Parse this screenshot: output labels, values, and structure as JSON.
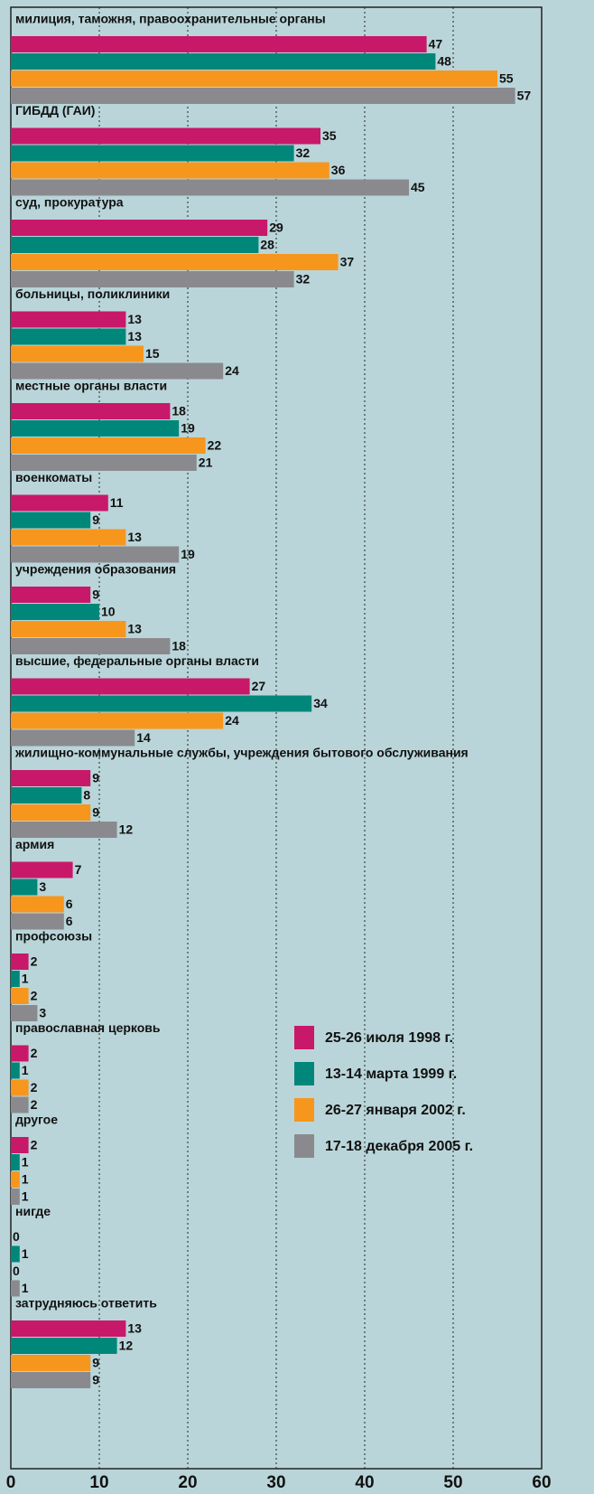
{
  "chart_data": {
    "type": "bar",
    "orientation": "horizontal",
    "categories": [
      "милиция, таможня, правоохранительные органы",
      "ГИБДД (ГАИ)",
      "суд, прокуратура",
      "больницы, поликлиники",
      "местные органы власти",
      "военкоматы",
      "учреждения образования",
      "высшие, федеральные органы власти",
      "жилищно-коммунальные службы, учреждения бытового обслуживания",
      "армия",
      "профсоюзы",
      "православная церковь",
      "другое",
      "нигде",
      "затрудняюсь ответить"
    ],
    "series": [
      {
        "name": "25-26 июля 1998 г.",
        "color": "#c8186a",
        "values": [
          47,
          35,
          29,
          13,
          18,
          11,
          9,
          27,
          9,
          7,
          2,
          2,
          2,
          0,
          13
        ]
      },
      {
        "name": "13-14 марта 1999 г.",
        "color": "#00877a",
        "values": [
          48,
          32,
          28,
          13,
          19,
          9,
          10,
          34,
          8,
          3,
          1,
          1,
          1,
          1,
          12
        ]
      },
      {
        "name": "26-27 января 2002 г.",
        "color": "#f7961d",
        "values": [
          55,
          36,
          37,
          15,
          22,
          13,
          13,
          24,
          9,
          6,
          2,
          2,
          1,
          0,
          9
        ]
      },
      {
        "name": "17-18 декабря 2005 г.",
        "color": "#8a8a8e",
        "values": [
          57,
          45,
          32,
          24,
          21,
          19,
          18,
          14,
          12,
          6,
          3,
          2,
          1,
          1,
          9
        ]
      }
    ],
    "xlim": [
      0,
      60
    ],
    "xticks": [
      0,
      10,
      20,
      30,
      40,
      50,
      60
    ],
    "grid": true,
    "legend": "right"
  }
}
